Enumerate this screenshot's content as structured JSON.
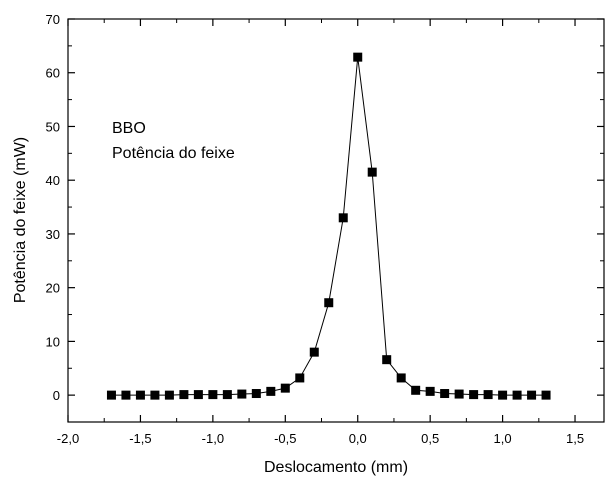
{
  "chart_data": {
    "type": "line",
    "title": "",
    "xlabel": "Deslocamento (mm)",
    "ylabel": "Potência do feixe (mW)",
    "xlim": [
      -2.0,
      1.7
    ],
    "ylim": [
      -5,
      70
    ],
    "x_ticks": [
      -2.0,
      -1.5,
      -1.0,
      -0.5,
      0.0,
      0.5,
      1.0,
      1.5
    ],
    "x_tick_labels": [
      "-2,0",
      "-1,5",
      "-1,0",
      "-0,5",
      "0,0",
      "0,5",
      "1,0",
      "1,5"
    ],
    "y_ticks": [
      0,
      10,
      20,
      30,
      40,
      50,
      60,
      70
    ],
    "y_tick_labels": [
      "0",
      "10",
      "20",
      "30",
      "40",
      "50",
      "60",
      "70"
    ],
    "annotations": [
      "BBO",
      "Potência do feixe"
    ],
    "grid": false,
    "series": [
      {
        "marker": "square",
        "color": "#000000",
        "x": [
          -1.7,
          -1.6,
          -1.5,
          -1.4,
          -1.3,
          -1.2,
          -1.1,
          -1.0,
          -0.9,
          -0.8,
          -0.7,
          -0.6,
          -0.5,
          -0.4,
          -0.3,
          -0.2,
          -0.1,
          0.0,
          0.1,
          0.2,
          0.3,
          0.4,
          0.5,
          0.6,
          0.7,
          0.8,
          0.9,
          1.0,
          1.1,
          1.2,
          1.3
        ],
        "y": [
          0.0,
          0.0,
          0.0,
          0.0,
          0.0,
          0.1,
          0.1,
          0.1,
          0.1,
          0.2,
          0.3,
          0.7,
          1.3,
          3.2,
          8.0,
          17.2,
          33.0,
          62.9,
          41.5,
          6.6,
          3.2,
          0.9,
          0.7,
          0.3,
          0.2,
          0.1,
          0.1,
          0.0,
          0.0,
          0.0,
          0.0
        ]
      }
    ]
  }
}
